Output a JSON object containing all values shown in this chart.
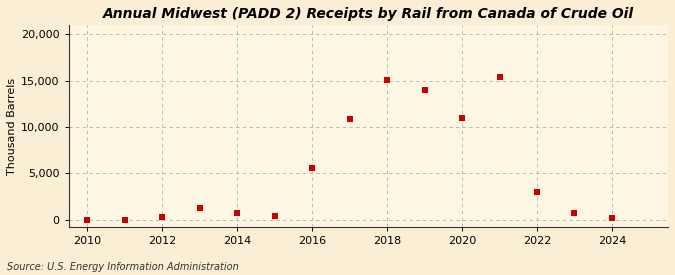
{
  "title": "Annual Midwest (PADD 2) Receipts by Rail from Canada of Crude Oil",
  "ylabel": "Thousand Barrels",
  "source": "Source: U.S. Energy Information Administration",
  "years": [
    2010,
    2011,
    2012,
    2013,
    2014,
    2015,
    2016,
    2017,
    2018,
    2019,
    2020,
    2021,
    2022,
    2023,
    2024
  ],
  "values": [
    2,
    -50,
    300,
    1300,
    700,
    350,
    5600,
    10900,
    15100,
    14000,
    11000,
    15400,
    3000,
    750,
    200
  ],
  "marker_color": "#cc0000",
  "marker": "s",
  "marker_size": 4,
  "bg_color": "#faefd4",
  "plot_bg_color": "#fdf6e3",
  "grid_color": "#b0b0b0",
  "xlim": [
    2009.5,
    2025.5
  ],
  "ylim": [
    -800,
    21000
  ],
  "yticks": [
    0,
    5000,
    10000,
    15000,
    20000
  ],
  "xticks": [
    2010,
    2012,
    2014,
    2016,
    2018,
    2020,
    2022,
    2024
  ],
  "title_fontsize": 10,
  "label_fontsize": 8,
  "tick_fontsize": 8,
  "source_fontsize": 7
}
